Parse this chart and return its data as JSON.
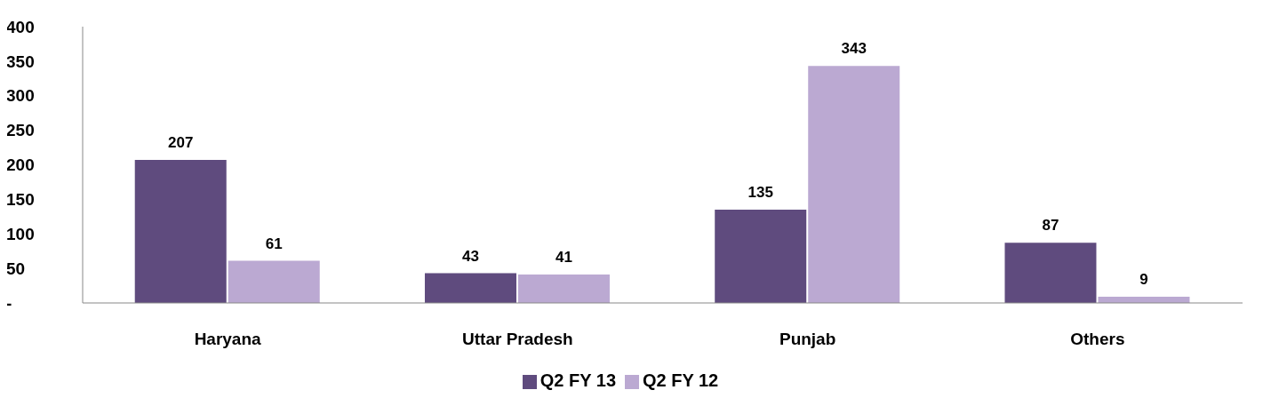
{
  "chart_data": {
    "type": "bar",
    "categories": [
      "Haryana",
      "Uttar Pradesh",
      "Punjab",
      "Others"
    ],
    "series": [
      {
        "name": "Q2 FY 13",
        "color": "#5f4b7e",
        "values": [
          207,
          43,
          135,
          87
        ]
      },
      {
        "name": "Q2 FY 12",
        "color": "#bba9d2",
        "values": [
          61,
          41,
          343,
          9
        ]
      }
    ],
    "ylim": [
      0,
      400
    ],
    "yticks": [
      {
        "value": 0,
        "label": "-"
      },
      50,
      100,
      150,
      200,
      250,
      300,
      350,
      400
    ],
    "grid": false,
    "legend": "bottom",
    "data_labels": true
  }
}
